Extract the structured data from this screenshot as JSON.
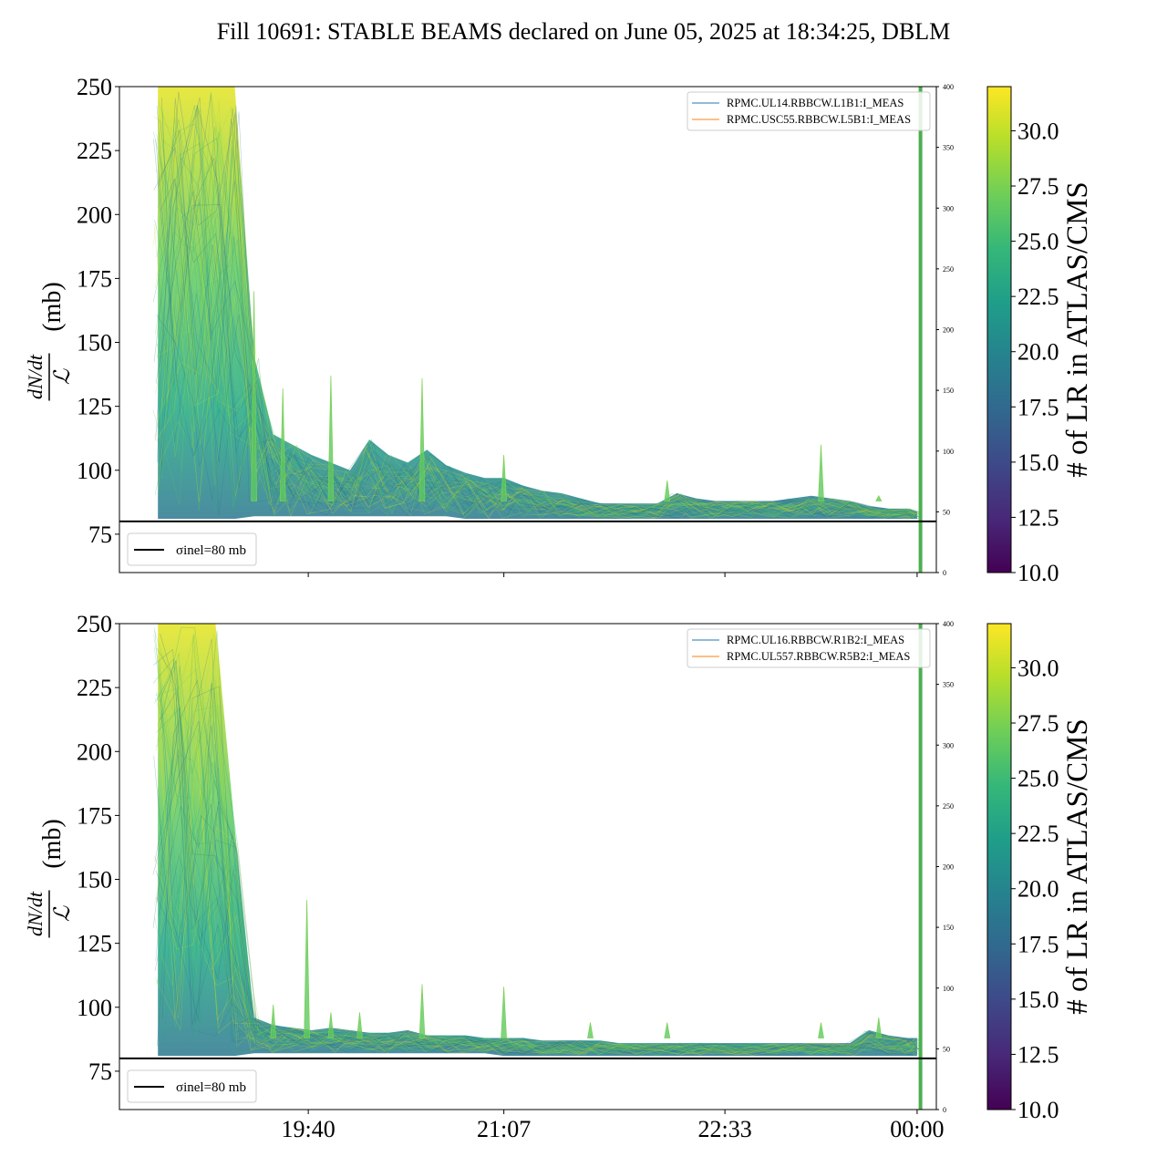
{
  "title": "Fill 10691: STABLE BEAMS declared on June 05, 2025 at 18:34:25, DBLM",
  "colors": {
    "line_blue": "#1f77b4",
    "line_orange": "#ff7f0e",
    "vline_green": "#4caf50",
    "ref_line": "#000000",
    "viridis_stops": [
      "#440154",
      "#482878",
      "#3e4989",
      "#31688e",
      "#26828e",
      "#1f9e89",
      "#35b779",
      "#6ece58",
      "#b5de2b",
      "#fde725"
    ]
  },
  "chart_data": [
    {
      "type": "line",
      "panel": "top",
      "ylabel_fraction": "dN/dt / ℒ",
      "ylabel_unit": "(mb)",
      "ylim": [
        60,
        250
      ],
      "yticks": [
        "75",
        "100",
        "125",
        "150",
        "175",
        "200",
        "225",
        "250"
      ],
      "ytick_values": [
        75,
        100,
        125,
        150,
        175,
        200,
        225,
        250
      ],
      "y2lim": [
        0,
        400
      ],
      "y2ticks": [
        "0",
        "50",
        "100",
        "150",
        "200",
        "250",
        "300",
        "350",
        "400"
      ],
      "xlim_minutes": [
        -40,
        130
      ],
      "xtick_minutes": [
        -0.7,
        40,
        86,
        126
      ],
      "xtick_labels": [
        "19:40",
        "21:07",
        "22:33",
        "00:00"
      ],
      "show_xtick_labels": false,
      "legend": [
        "RPMC.UL14.RBBCW.L1B1:I_MEAS",
        "RPMC.USC55.RBBCW.L5B1:I_MEAS"
      ],
      "ref_line": {
        "value": 80,
        "label": "σinel=80 mb"
      },
      "stable_beams_end_minute": 126.7,
      "envelope": {
        "x_minutes": [
          -32,
          -28,
          -24,
          -20,
          -16,
          -12,
          -8,
          -4,
          0,
          4,
          8,
          12,
          16,
          20,
          24,
          28,
          32,
          36,
          40,
          44,
          48,
          52,
          56,
          60,
          64,
          68,
          72,
          76,
          80,
          84,
          88,
          92,
          96,
          100,
          104,
          108,
          112,
          116,
          120,
          124,
          126
        ],
        "upper": [
          250,
          250,
          250,
          250,
          250,
          145,
          114,
          110,
          106,
          103,
          100,
          112,
          106,
          103,
          108,
          102,
          99,
          97,
          97,
          94,
          92,
          91,
          89,
          87,
          87,
          87,
          87,
          91,
          89,
          88,
          88,
          88,
          88,
          89,
          90,
          89,
          88,
          86,
          85,
          85,
          84
        ],
        "lower": [
          81,
          81,
          81,
          81,
          81,
          82,
          82,
          82,
          82,
          82,
          82,
          82,
          82,
          82,
          82,
          82,
          81,
          81,
          81,
          81,
          81,
          81,
          81,
          81,
          81,
          81,
          81,
          81,
          81,
          81,
          81,
          81,
          81,
          81,
          81,
          81,
          81,
          81,
          81,
          81,
          81
        ]
      },
      "spikes": [
        {
          "minute": -12,
          "value": 170
        },
        {
          "minute": -6,
          "value": 132
        },
        {
          "minute": 4,
          "value": 137
        },
        {
          "minute": 23,
          "value": 136
        },
        {
          "minute": 40,
          "value": 106
        },
        {
          "minute": 74,
          "value": 96
        },
        {
          "minute": 106,
          "value": 110
        },
        {
          "minute": 118,
          "value": 90
        }
      ]
    },
    {
      "type": "line",
      "panel": "bottom",
      "ylabel_fraction": "dN/dt / ℒ",
      "ylabel_unit": "(mb)",
      "ylim": [
        60,
        250
      ],
      "yticks": [
        "75",
        "100",
        "125",
        "150",
        "175",
        "200",
        "225",
        "250"
      ],
      "ytick_values": [
        75,
        100,
        125,
        150,
        175,
        200,
        225,
        250
      ],
      "y2lim": [
        0,
        400
      ],
      "y2ticks": [
        "0",
        "50",
        "100",
        "150",
        "200",
        "250",
        "300",
        "350",
        "400"
      ],
      "xlim_minutes": [
        -40,
        130
      ],
      "xtick_minutes": [
        -0.7,
        40,
        86,
        126
      ],
      "xtick_labels": [
        "19:40",
        "21:07",
        "22:33",
        "00:00"
      ],
      "show_xtick_labels": true,
      "legend": [
        "RPMC.UL16.RBBCW.R1B2:I_MEAS",
        "RPMC.UL557.RBBCW.R5B2:I_MEAS"
      ],
      "ref_line": {
        "value": 80,
        "label": "σinel=80 mb"
      },
      "stable_beams_end_minute": 126.7,
      "envelope": {
        "x_minutes": [
          -32,
          -28,
          -24,
          -20,
          -16,
          -12,
          -8,
          -4,
          0,
          4,
          8,
          12,
          16,
          20,
          24,
          28,
          32,
          36,
          40,
          44,
          48,
          52,
          56,
          60,
          64,
          68,
          72,
          76,
          80,
          84,
          88,
          92,
          96,
          100,
          104,
          108,
          112,
          116,
          120,
          124,
          126
        ],
        "upper": [
          250,
          250,
          250,
          250,
          170,
          96,
          93,
          92,
          91,
          92,
          91,
          90,
          90,
          91,
          89,
          89,
          89,
          88,
          88,
          88,
          87,
          87,
          87,
          87,
          86,
          86,
          86,
          86,
          86,
          86,
          86,
          86,
          86,
          86,
          86,
          86,
          86,
          91,
          89,
          88,
          88
        ],
        "lower": [
          81,
          81,
          81,
          81,
          81,
          82,
          82,
          82,
          82,
          82,
          82,
          82,
          82,
          82,
          82,
          82,
          82,
          82,
          81,
          81,
          81,
          81,
          81,
          81,
          81,
          81,
          81,
          81,
          81,
          81,
          81,
          81,
          81,
          81,
          81,
          81,
          81,
          81,
          81,
          81,
          81
        ]
      },
      "spikes": [
        {
          "minute": -8,
          "value": 101
        },
        {
          "minute": -1,
          "value": 142
        },
        {
          "minute": 4,
          "value": 98
        },
        {
          "minute": 10,
          "value": 98
        },
        {
          "minute": 23,
          "value": 109
        },
        {
          "minute": 40,
          "value": 108
        },
        {
          "minute": 58,
          "value": 94
        },
        {
          "minute": 74,
          "value": 94
        },
        {
          "minute": 106,
          "value": 94
        },
        {
          "minute": 118,
          "value": 96
        }
      ]
    }
  ],
  "colorbars": [
    {
      "label": "# of LR in ATLAS/CMS",
      "range": [
        10,
        32
      ],
      "ticks": [
        "10.0",
        "12.5",
        "15.0",
        "17.5",
        "20.0",
        "22.5",
        "25.0",
        "27.5",
        "30.0"
      ],
      "tick_values": [
        10,
        12.5,
        15,
        17.5,
        20,
        22.5,
        25,
        27.5,
        30
      ]
    },
    {
      "label": "# of LR in ATLAS/CMS",
      "range": [
        10,
        32
      ],
      "ticks": [
        "10.0",
        "12.5",
        "15.0",
        "17.5",
        "20.0",
        "22.5",
        "25.0",
        "27.5",
        "30.0"
      ],
      "tick_values": [
        10,
        12.5,
        15,
        17.5,
        20,
        22.5,
        25,
        27.5,
        30
      ]
    }
  ]
}
